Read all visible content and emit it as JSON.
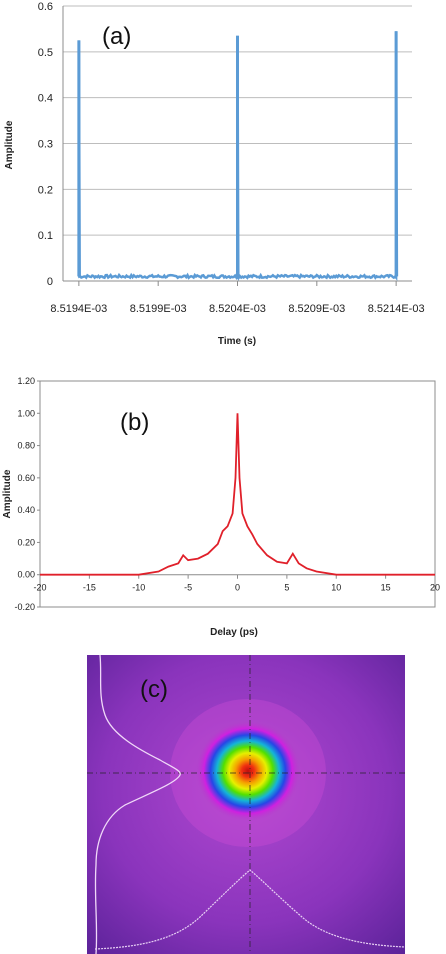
{
  "chart_data": [
    {
      "panel": "(a)",
      "type": "line",
      "xlabel": "Time (s)",
      "ylabel": "Amplitude",
      "xlim": [
        0.0085193,
        0.0085215
      ],
      "ylim": [
        0,
        0.6
      ],
      "yticks": [
        "0",
        "0.1",
        "0.2",
        "0.3",
        "0.4",
        "0.5",
        "0.6"
      ],
      "xticks": [
        "8.5194E-03",
        "8.5199E-03",
        "8.5204E-03",
        "8.5209E-03",
        "8.5214E-03"
      ],
      "grid": true,
      "color": "#5b9bd5",
      "baseline": 0.01,
      "peaks": [
        {
          "x": 0.0085194,
          "y": 0.525
        },
        {
          "x": 0.0085204,
          "y": 0.535
        },
        {
          "x": 0.0085214,
          "y": 0.545
        }
      ]
    },
    {
      "panel": "(b)",
      "type": "line",
      "xlabel": "Delay (ps)",
      "ylabel": "Amplitude",
      "xlim": [
        -20,
        20
      ],
      "ylim": [
        -0.2,
        1.2
      ],
      "yticks": [
        "1.20",
        "1.00",
        "0.80",
        "0.60",
        "0.40",
        "0.20",
        "0.00",
        "-0.20"
      ],
      "xticks": [
        "-20",
        "-15",
        "-10",
        "-5",
        "0",
        "5",
        "10",
        "15",
        "20"
      ],
      "grid": false,
      "color": "#e0202a",
      "series": [
        {
          "values": [
            [
              -20,
              0.0
            ],
            [
              -15,
              0.0
            ],
            [
              -10,
              0.0
            ],
            [
              -8,
              0.02
            ],
            [
              -7,
              0.05
            ],
            [
              -6,
              0.07
            ],
            [
              -5.5,
              0.12
            ],
            [
              -5,
              0.09
            ],
            [
              -4,
              0.1
            ],
            [
              -3,
              0.13
            ],
            [
              -2,
              0.19
            ],
            [
              -1.5,
              0.27
            ],
            [
              -1,
              0.3
            ],
            [
              -0.5,
              0.38
            ],
            [
              -0.2,
              0.6
            ],
            [
              0,
              1.0
            ],
            [
              0.2,
              0.6
            ],
            [
              0.5,
              0.38
            ],
            [
              1,
              0.3
            ],
            [
              1.5,
              0.25
            ],
            [
              2,
              0.19
            ],
            [
              3,
              0.12
            ],
            [
              4,
              0.08
            ],
            [
              5,
              0.07
            ],
            [
              5.6,
              0.13
            ],
            [
              6.2,
              0.07
            ],
            [
              7,
              0.04
            ],
            [
              8,
              0.02
            ],
            [
              10,
              0.0
            ],
            [
              15,
              0.0
            ],
            [
              20,
              0.0
            ]
          ]
        }
      ]
    }
  ],
  "panels": {
    "a_tag": "(a)",
    "b_tag": "(b)",
    "c_tag": "(c)"
  },
  "beam_profile": {
    "background": "#7a2ab0",
    "colors": [
      "#d81a1a",
      "#f5a000",
      "#e6f000",
      "#52e000",
      "#14b4d8",
      "#2646e6",
      "#d020e0",
      "#b340c8"
    ],
    "line_color": "#f0d8f8"
  }
}
